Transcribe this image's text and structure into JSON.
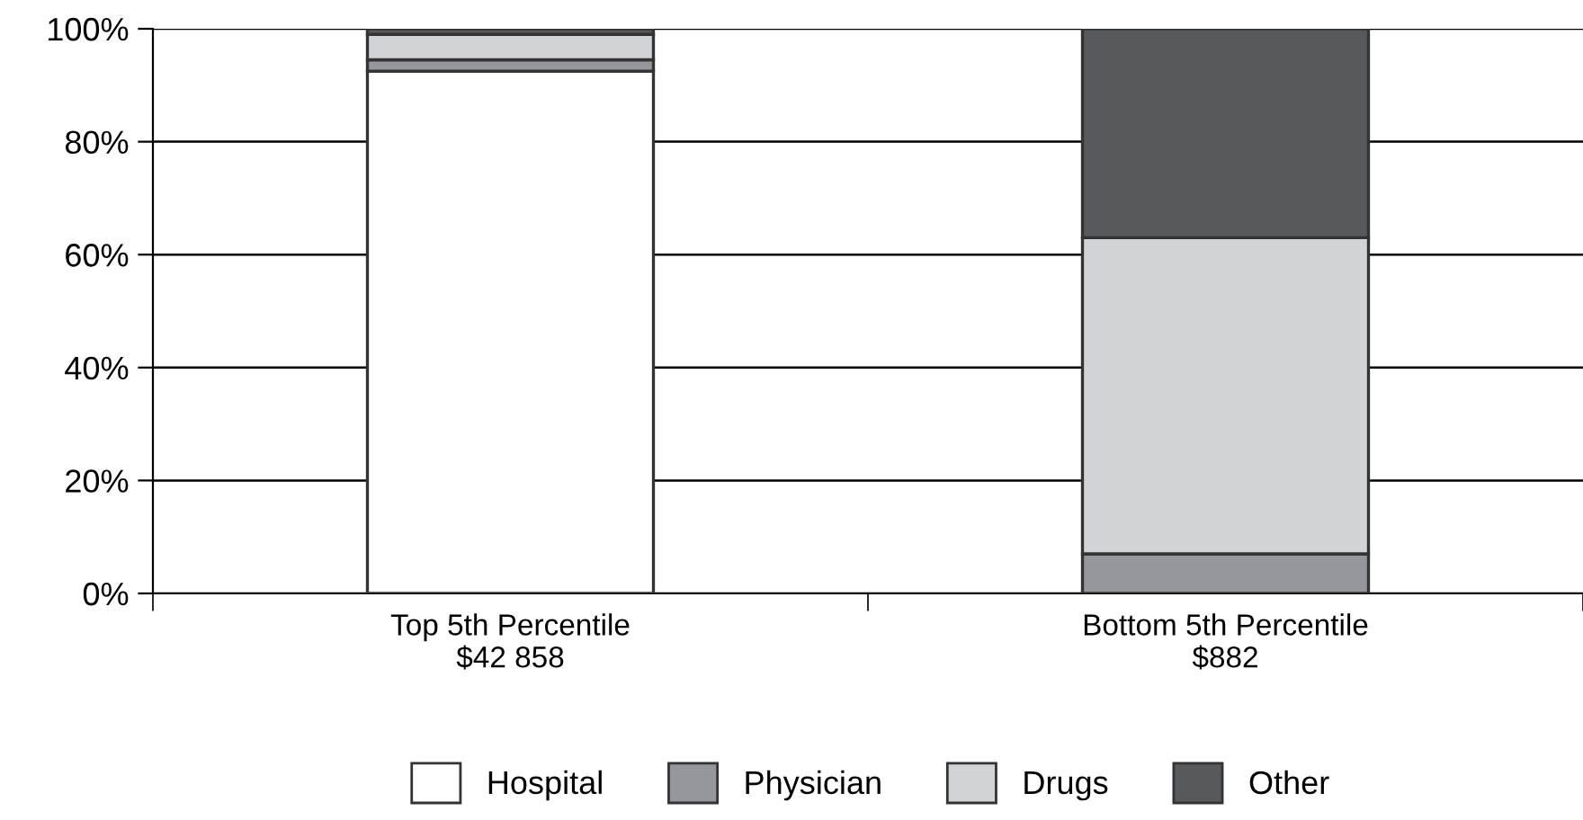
{
  "chart_data": {
    "type": "bar",
    "stacked": true,
    "categories": [
      "Top 5th Percentile\n$42 858",
      "Bottom 5th Percentile\n$882"
    ],
    "series": [
      {
        "name": "Hospital",
        "color": "#ffffff",
        "values": [
          92.5,
          0
        ]
      },
      {
        "name": "Physician",
        "color": "#96979a",
        "values": [
          2,
          7
        ]
      },
      {
        "name": "Drugs",
        "color": "#d2d3d5",
        "values": [
          4.5,
          56
        ]
      },
      {
        "name": "Other",
        "color": "#58595b",
        "values": [
          1,
          37
        ]
      }
    ],
    "ylim": [
      0,
      100
    ],
    "yticks": [
      {
        "value": 0,
        "label": "0%"
      },
      {
        "value": 20,
        "label": "20%"
      },
      {
        "value": 40,
        "label": "40%"
      },
      {
        "value": 60,
        "label": "60%"
      },
      {
        "value": 80,
        "label": "80%"
      },
      {
        "value": 100,
        "label": "100%"
      }
    ],
    "grid": "y",
    "legend": "bottom"
  }
}
